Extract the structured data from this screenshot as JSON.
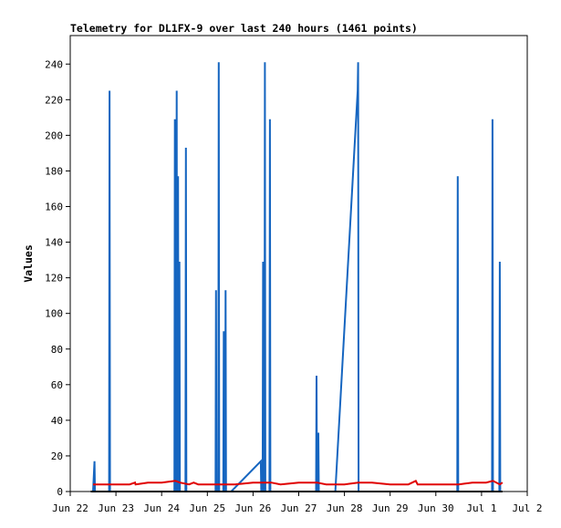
{
  "chart_data": {
    "type": "line",
    "title": "Telemetry for DL1FX-9 over last 240 hours (1461 points)",
    "ylabel": "Values",
    "xlabel": "",
    "ylim": [
      0,
      256
    ],
    "xlim": [
      "Jun 22",
      "Jul 2"
    ],
    "y_ticks": [
      0,
      20,
      40,
      60,
      80,
      100,
      120,
      140,
      160,
      180,
      200,
      220,
      240
    ],
    "x_ticks": [
      "Jun 22",
      "Jun 23",
      "Jun 24",
      "Jun 25",
      "Jun 26",
      "Jun 27",
      "Jun 28",
      "Jun 29",
      "Jun 30",
      "Jul 1",
      "Jul 2"
    ],
    "grid": false,
    "colors": {
      "blue": "#1565c0",
      "red": "#e00000",
      "black": "#000000"
    },
    "series": [
      {
        "color": "#1565c0",
        "points": [
          [
            0.5,
            0
          ],
          [
            0.53,
            17
          ],
          [
            0.54,
            0
          ],
          [
            0.85,
            0
          ],
          [
            0.86,
            225
          ],
          [
            0.87,
            0
          ],
          [
            2.28,
            0
          ],
          [
            2.29,
            209
          ],
          [
            2.3,
            0
          ],
          [
            2.32,
            0
          ],
          [
            2.33,
            225
          ],
          [
            2.34,
            0
          ],
          [
            2.35,
            0
          ],
          [
            2.36,
            177
          ],
          [
            2.37,
            0
          ],
          [
            2.38,
            0
          ],
          [
            2.39,
            129
          ],
          [
            2.4,
            0
          ],
          [
            2.52,
            0
          ],
          [
            2.53,
            193
          ],
          [
            2.54,
            0
          ],
          [
            3.18,
            0
          ],
          [
            3.19,
            113
          ],
          [
            3.2,
            0
          ],
          [
            3.24,
            0
          ],
          [
            3.25,
            241
          ],
          [
            3.26,
            0
          ],
          [
            3.35,
            0
          ],
          [
            3.36,
            90
          ],
          [
            3.37,
            0
          ],
          [
            3.39,
            0
          ],
          [
            3.4,
            113
          ],
          [
            3.41,
            0
          ],
          [
            3.52,
            0
          ],
          [
            4.17,
            17
          ],
          [
            4.18,
            0
          ],
          [
            4.21,
            0
          ],
          [
            4.22,
            129
          ],
          [
            4.23,
            0
          ],
          [
            4.25,
            0
          ],
          [
            4.26,
            241
          ],
          [
            4.27,
            0
          ],
          [
            4.36,
            0
          ],
          [
            4.37,
            209
          ],
          [
            4.38,
            0
          ],
          [
            5.38,
            0
          ],
          [
            5.39,
            65
          ],
          [
            5.4,
            0
          ],
          [
            5.42,
            0
          ],
          [
            5.43,
            33
          ],
          [
            5.44,
            0
          ],
          [
            5.8,
            0
          ],
          [
            6.29,
            225
          ],
          [
            6.3,
            241
          ],
          [
            6.31,
            0
          ],
          [
            8.47,
            0
          ],
          [
            8.48,
            177
          ],
          [
            8.49,
            0
          ],
          [
            9.23,
            0
          ],
          [
            9.24,
            209
          ],
          [
            9.25,
            0
          ],
          [
            9.39,
            0
          ],
          [
            9.4,
            129
          ],
          [
            9.41,
            0
          ]
        ]
      },
      {
        "color": "#e00000",
        "points": [
          [
            0.5,
            4
          ],
          [
            0.7,
            4
          ],
          [
            0.9,
            4
          ],
          [
            1.1,
            4
          ],
          [
            1.3,
            4
          ],
          [
            1.42,
            5
          ],
          [
            1.43,
            4
          ],
          [
            1.7,
            5
          ],
          [
            2.0,
            5
          ],
          [
            2.3,
            6
          ],
          [
            2.4,
            5
          ],
          [
            2.6,
            4
          ],
          [
            2.7,
            5
          ],
          [
            2.8,
            4
          ],
          [
            3.1,
            4
          ],
          [
            3.3,
            4
          ],
          [
            3.6,
            4
          ],
          [
            4.0,
            5
          ],
          [
            4.4,
            5
          ],
          [
            4.6,
            4
          ],
          [
            5.0,
            5
          ],
          [
            5.4,
            5
          ],
          [
            5.6,
            4
          ],
          [
            6.0,
            4
          ],
          [
            6.3,
            5
          ],
          [
            6.6,
            5
          ],
          [
            7.0,
            4
          ],
          [
            7.4,
            4
          ],
          [
            7.56,
            6
          ],
          [
            7.6,
            4
          ],
          [
            8.0,
            4
          ],
          [
            8.3,
            4
          ],
          [
            8.5,
            4
          ],
          [
            8.8,
            5
          ],
          [
            9.1,
            5
          ],
          [
            9.25,
            6
          ],
          [
            9.4,
            4
          ],
          [
            9.46,
            5
          ]
        ]
      },
      {
        "color": "#000000",
        "points": [
          [
            0.45,
            0
          ],
          [
            9.46,
            0
          ]
        ]
      }
    ]
  }
}
